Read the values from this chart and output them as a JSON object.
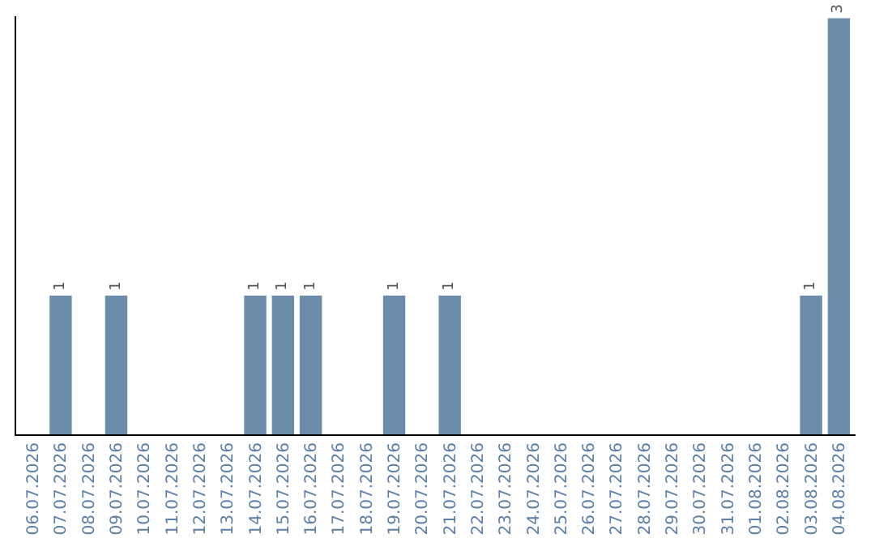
{
  "chart_data": {
    "type": "bar",
    "categories": [
      "06.07.2026",
      "07.07.2026",
      "08.07.2026",
      "09.07.2026",
      "10.07.2026",
      "11.07.2026",
      "12.07.2026",
      "13.07.2026",
      "14.07.2026",
      "15.07.2026",
      "16.07.2026",
      "17.07.2026",
      "18.07.2026",
      "19.07.2026",
      "20.07.2026",
      "21.07.2026",
      "22.07.2026",
      "23.07.2026",
      "24.07.2026",
      "25.07.2026",
      "26.07.2026",
      "27.07.2026",
      "28.07.2026",
      "29.07.2026",
      "30.07.2026",
      "31.07.2026",
      "01.08.2026",
      "02.08.2026",
      "03.08.2026",
      "04.08.2026"
    ],
    "values": [
      0,
      1,
      0,
      1,
      0,
      0,
      0,
      0,
      1,
      1,
      1,
      0,
      0,
      1,
      0,
      1,
      0,
      0,
      0,
      0,
      0,
      0,
      0,
      0,
      0,
      0,
      0,
      0,
      1,
      3
    ],
    "value_labels": [
      null,
      "1",
      null,
      "1",
      null,
      null,
      null,
      null,
      "1",
      "1",
      "1",
      null,
      null,
      "1",
      null,
      "1",
      null,
      null,
      null,
      null,
      null,
      null,
      null,
      null,
      null,
      null,
      null,
      null,
      "1",
      "3"
    ],
    "color": "#6b8cab"
  }
}
